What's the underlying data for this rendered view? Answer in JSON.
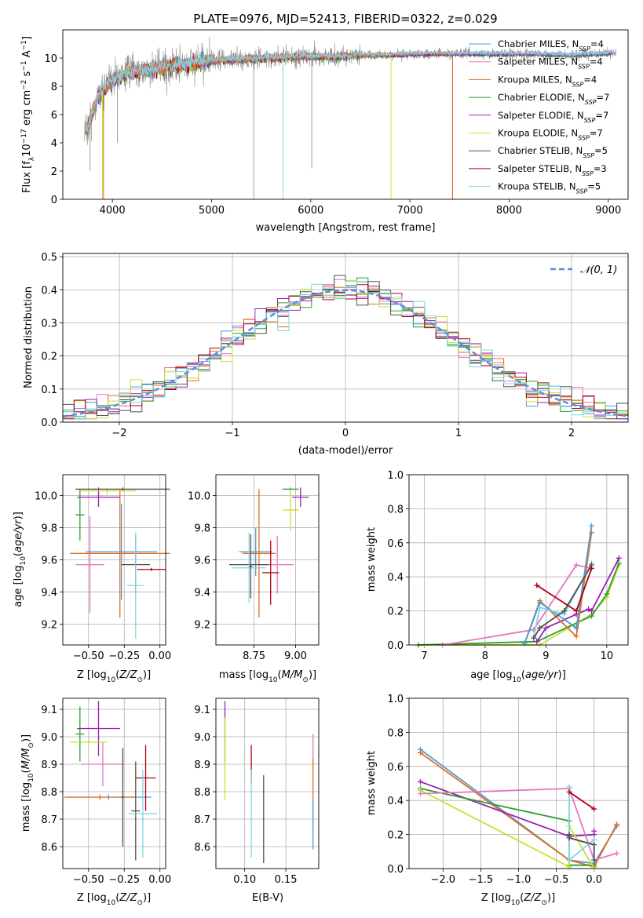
{
  "title": "PLATE=0976, MJD=52413, FIBERID=0322, z=0.029",
  "colors": {
    "cm": "#4f9bd6",
    "sm": "#e377c2",
    "km": "#e07020",
    "ce": "#2ca02c",
    "se": "#9b1fb0",
    "ke": "#c8e030",
    "cs": "#505050",
    "ss": "#b00010",
    "ks": "#7dd8e0",
    "grid": "#b0b0b0",
    "gray": "#888888",
    "dash": "#5a8fd8"
  },
  "chart_data": [
    {
      "id": "spectrum",
      "type": "line",
      "title": "PLATE=0976, MJD=52413, FIBERID=0322, z=0.029",
      "xlabel": "wavelength [Angstrom, rest frame]",
      "ylabel": "Flux [fλ10⁻¹⁷ erg cm⁻² s⁻¹ A⁻¹]",
      "xlim": [
        3500,
        9200
      ],
      "ylim": [
        0,
        12
      ],
      "xticks": [
        4000,
        5000,
        6000,
        7000,
        8000,
        9000
      ],
      "yticks": [
        0,
        2,
        4,
        6,
        8,
        10
      ],
      "data_anchor_x": [
        3750,
        3850,
        4000,
        4200,
        4500,
        4800,
        5000,
        5300,
        5600,
        5900,
        6200,
        6500,
        6800,
        7100,
        7400,
        7700,
        8000,
        8300,
        8600,
        8900,
        9100
      ],
      "data_anchor_y": [
        5.0,
        7.2,
        8.5,
        9.0,
        9.3,
        9.6,
        9.8,
        9.9,
        10.0,
        10.1,
        10.1,
        10.2,
        10.2,
        10.3,
        10.3,
        10.3,
        10.3,
        10.3,
        10.2,
        10.3,
        10.4
      ],
      "legend": [
        {
          "label": "Chabrier MILES, N",
          "sub": "SSP",
          "suffix": "=4",
          "color": "cm"
        },
        {
          "label": "Salpeter MILES, N",
          "sub": "SSP",
          "suffix": "=4",
          "color": "sm"
        },
        {
          "label": "Kroupa MILES, N",
          "sub": "SSP",
          "suffix": "=4",
          "color": "km"
        },
        {
          "label": "Chabrier ELODIE, N",
          "sub": "SSP",
          "suffix": "=7",
          "color": "ce"
        },
        {
          "label": "Salpeter ELODIE, N",
          "sub": "SSP",
          "suffix": "=7",
          "color": "se"
        },
        {
          "label": "Kroupa ELODIE, N",
          "sub": "SSP",
          "suffix": "=7",
          "color": "ke"
        },
        {
          "label": "Chabrier STELIB, N",
          "sub": "SSP",
          "suffix": "=5",
          "color": "cs"
        },
        {
          "label": "Salpeter STELIB, N",
          "sub": "SSP",
          "suffix": "=3",
          "color": "ss"
        },
        {
          "label": "Kroupa STELIB, N",
          "sub": "SSP",
          "suffix": "=5",
          "color": "ks"
        }
      ]
    },
    {
      "id": "residuals",
      "type": "line",
      "xlabel": "(data-model)/error",
      "ylabel": "Normed distribution",
      "xlim": [
        -2.5,
        2.5
      ],
      "ylim": [
        0,
        0.51
      ],
      "xticks": [
        -2,
        -1,
        0,
        1,
        2
      ],
      "xticklabels": [
        "−2",
        "−1",
        "0",
        "1",
        "2"
      ],
      "yticks": [
        0,
        0.1,
        0.2,
        0.3,
        0.4,
        0.5
      ],
      "yticklabels": [
        "0.0",
        "0.1",
        "0.2",
        "0.3",
        "0.4",
        "0.5"
      ],
      "bin_width": 0.1,
      "legend": [
        {
          "label": "N(0,1)",
          "color": "dash",
          "style": "dashed"
        }
      ]
    },
    {
      "id": "age_vs_Z",
      "type": "scatter",
      "xlabel": "Z [log10(Z/Z⊙)]",
      "ylabel": "age  [log10(age/yr)]",
      "xlim": [
        -0.68,
        0.04
      ],
      "ylim": [
        9.07,
        10.13
      ],
      "xticks": [
        -0.5,
        -0.25,
        0.0
      ],
      "xticklabels": [
        "−0.50",
        "−0.25",
        "0.00"
      ],
      "yticks": [
        9.2,
        9.4,
        9.6,
        9.8,
        10.0
      ],
      "yticklabels": [
        "9.2",
        "9.4",
        "9.6",
        "9.8",
        "10.0"
      ],
      "points": [
        {
          "c": "cm",
          "x": -0.27,
          "xe": 0.25,
          "y": 9.65,
          "ye": 0.3
        },
        {
          "c": "sm",
          "x": -0.49,
          "xe": 0.1,
          "y": 9.57,
          "ye": 0.3
        },
        {
          "c": "km",
          "x": -0.28,
          "xe": 0.35,
          "y": 9.64,
          "ye": 0.4
        },
        {
          "c": "ce",
          "x": -0.56,
          "xe": 0.03,
          "y": 9.88,
          "ye": 0.16
        },
        {
          "c": "se",
          "x": -0.43,
          "xe": 0.15,
          "y": 9.99,
          "ye": 0.06
        },
        {
          "c": "ke",
          "x": -0.37,
          "xe": 0.2,
          "y": 10.03,
          "ye": 0.02
        },
        {
          "c": "cs",
          "x": -0.17,
          "xe": 0.1,
          "y": 9.57,
          "ye": 0.18
        },
        {
          "c": "ss",
          "x": -0.06,
          "xe": 0.1,
          "y": 9.54,
          "ye": 0.01
        },
        {
          "c": "ks",
          "x": -0.17,
          "xe": 0.06,
          "y": 9.44,
          "ye": 0.33
        },
        {
          "c": "cs",
          "x": -0.26,
          "xe": 0.33,
          "y": 10.04,
          "ye": 0.01
        }
      ]
    },
    {
      "id": "age_vs_mass",
      "type": "scatter",
      "xlabel": "mass [log10(M/M⊙)]",
      "xlim": [
        8.52,
        9.14
      ],
      "ylim": [
        9.07,
        10.13
      ],
      "xticks": [
        8.75,
        9.0
      ],
      "xticklabels": [
        "8.75",
        "9.00"
      ],
      "yticks": [
        9.2,
        9.4,
        9.6,
        9.8,
        10.0
      ],
      "yticklabels": [
        "9.2",
        "9.4",
        "9.6",
        "9.8",
        "10.0"
      ],
      "points": [
        {
          "c": "cm",
          "x": 8.76,
          "xe": 0.1,
          "y": 9.65,
          "ye": 0.15
        },
        {
          "c": "sm",
          "x": 8.89,
          "xe": 0.1,
          "y": 9.57,
          "ye": 0.18
        },
        {
          "c": "km",
          "x": 8.78,
          "xe": 0.1,
          "y": 9.64,
          "ye": 0.4
        },
        {
          "c": "ce",
          "x": 8.97,
          "xe": 0.05,
          "y": 10.04,
          "ye": 0.01
        },
        {
          "c": "se",
          "x": 9.03,
          "xe": 0.05,
          "y": 9.99,
          "ye": 0.06
        },
        {
          "c": "ke",
          "x": 8.97,
          "xe": 0.05,
          "y": 9.91,
          "ye": 0.13
        },
        {
          "c": "cs",
          "x": 8.72,
          "xe": 0.12,
          "y": 9.57,
          "ye": 0.01
        },
        {
          "c": "ss",
          "x": 8.85,
          "xe": 0.05,
          "y": 9.52,
          "ye": 0.2
        },
        {
          "c": "ks",
          "x": 8.72,
          "xe": 0.1,
          "y": 9.55,
          "ye": 0.22
        },
        {
          "c": "cs",
          "x": 8.73,
          "xe": 0.01,
          "y": 9.56,
          "ye": 0.2
        }
      ]
    },
    {
      "id": "weight_vs_age",
      "type": "line",
      "xlabel": "age  [log10(age/yr)]",
      "ylabel": "mass weight",
      "xlim": [
        6.75,
        10.35
      ],
      "ylim": [
        0,
        1
      ],
      "xticks": [
        7,
        8,
        9,
        10
      ],
      "yticks": [
        0,
        0.2,
        0.4,
        0.6,
        0.8,
        1.0
      ],
      "yticklabels": [
        "0.0",
        "0.2",
        "0.4",
        "0.6",
        "0.8",
        "1.0"
      ],
      "series": [
        {
          "c": "ke",
          "pts": [
            [
              6.9,
              0.0
            ],
            [
              7.0,
              0.0
            ],
            [
              8.9,
              0.0
            ],
            [
              9.75,
              0.18
            ],
            [
              10.0,
              0.28
            ],
            [
              10.2,
              0.47
            ]
          ]
        },
        {
          "c": "ce",
          "pts": [
            [
              6.9,
              0.0
            ],
            [
              8.85,
              0.02
            ],
            [
              9.75,
              0.17
            ],
            [
              10.0,
              0.3
            ],
            [
              10.2,
              0.48
            ]
          ]
        },
        {
          "c": "se",
          "pts": [
            [
              8.85,
              0.02
            ],
            [
              9.0,
              0.1
            ],
            [
              9.5,
              0.18
            ],
            [
              9.7,
              0.21
            ],
            [
              9.75,
              0.2
            ],
            [
              10.2,
              0.51
            ]
          ]
        },
        {
          "c": "sm",
          "pts": [
            [
              7.3,
              0.0
            ],
            [
              8.8,
              0.09
            ],
            [
              9.5,
              0.47
            ],
            [
              9.75,
              0.45
            ]
          ]
        },
        {
          "c": "km",
          "pts": [
            [
              8.65,
              0.01
            ],
            [
              8.9,
              0.26
            ],
            [
              9.5,
              0.05
            ],
            [
              9.75,
              0.66
            ]
          ]
        },
        {
          "c": "cm",
          "pts": [
            [
              8.65,
              0.01
            ],
            [
              8.9,
              0.25
            ],
            [
              9.5,
              0.1
            ],
            [
              9.75,
              0.7
            ]
          ]
        },
        {
          "c": "ks",
          "pts": [
            [
              8.8,
              0.05
            ],
            [
              8.9,
              0.22
            ],
            [
              9.3,
              0.18
            ],
            [
              9.75,
              0.48
            ]
          ]
        },
        {
          "c": "cs",
          "pts": [
            [
              8.8,
              0.04
            ],
            [
              8.9,
              0.1
            ],
            [
              9.3,
              0.2
            ],
            [
              9.75,
              0.47
            ]
          ]
        },
        {
          "c": "ss",
          "pts": [
            [
              8.85,
              0.35
            ],
            [
              9.5,
              0.2
            ],
            [
              9.75,
              0.45
            ]
          ]
        }
      ]
    },
    {
      "id": "mass_vs_Z",
      "type": "scatter",
      "xlabel": "Z [log10(Z/Z⊙)]",
      "ylabel": "mass [log10(M/M⊙)]",
      "xlim": [
        -0.68,
        0.04
      ],
      "ylim": [
        8.52,
        9.14
      ],
      "xticks": [
        -0.5,
        -0.25,
        0.0
      ],
      "xticklabels": [
        "−0.50",
        "−0.25",
        "0.00"
      ],
      "yticks": [
        8.6,
        8.7,
        8.8,
        8.9,
        9.0,
        9.1
      ],
      "yticklabels": [
        "8.6",
        "8.7",
        "8.8",
        "8.9",
        "9.0",
        "9.1"
      ],
      "points": [
        {
          "c": "cm",
          "x": -0.36,
          "xe": 0.3,
          "y": 8.78,
          "ye": 0.01
        },
        {
          "c": "sm",
          "x": -0.4,
          "xe": 0.15,
          "y": 8.9,
          "ye": 0.08
        },
        {
          "c": "km",
          "x": -0.42,
          "xe": 0.25,
          "y": 8.78,
          "ye": 0.01
        },
        {
          "c": "ce",
          "x": -0.56,
          "xe": 0.03,
          "y": 9.01,
          "ye": 0.1
        },
        {
          "c": "se",
          "x": -0.43,
          "xe": 0.15,
          "y": 9.03,
          "ye": 0.1
        },
        {
          "c": "ke",
          "x": -0.5,
          "xe": 0.13,
          "y": 8.98,
          "ye": 0.01
        },
        {
          "c": "cs",
          "x": -0.17,
          "xe": 0.03,
          "y": 8.73,
          "ye": 0.18
        },
        {
          "c": "ss",
          "x": -0.1,
          "xe": 0.07,
          "y": 8.85,
          "ye": 0.12
        },
        {
          "c": "ks",
          "x": -0.12,
          "xe": 0.1,
          "y": 8.72,
          "ye": 0.16
        },
        {
          "c": "cs",
          "x": -0.26,
          "xe": 0.01,
          "y": 8.78,
          "ye": 0.18
        }
      ]
    },
    {
      "id": "mass_vs_ebv",
      "type": "scatter",
      "xlabel": "E(B-V)",
      "xlim": [
        0.065,
        0.19
      ],
      "ylim": [
        8.52,
        9.14
      ],
      "xticks": [
        0.1,
        0.15
      ],
      "xticklabels": [
        "0.10",
        "0.15"
      ],
      "yticks": [
        8.6,
        8.7,
        8.8,
        8.9,
        9.0,
        9.1
      ],
      "yticklabels": [
        "8.6",
        "8.7",
        "8.8",
        "8.9",
        "9.0",
        "9.1"
      ],
      "points": [
        {
          "c": "se",
          "x": 0.076,
          "xe": 0.0,
          "y": 9.02,
          "ye": 0.11
        },
        {
          "c": "ke",
          "x": 0.076,
          "xe": 0.0,
          "y": 8.92,
          "ye": 0.15
        },
        {
          "c": "ss",
          "x": 0.108,
          "xe": 0.0,
          "y": 8.9,
          "ye": 0.07
        },
        {
          "c": "ks",
          "x": 0.108,
          "xe": 0.0,
          "y": 8.72,
          "ye": 0.16
        },
        {
          "c": "cs",
          "x": 0.123,
          "xe": 0.0,
          "y": 8.7,
          "ye": 0.16
        },
        {
          "c": "sm",
          "x": 0.183,
          "xe": 0.0,
          "y": 8.95,
          "ye": 0.06
        },
        {
          "c": "km",
          "x": 0.183,
          "xe": 0.0,
          "y": 8.8,
          "ye": 0.12
        },
        {
          "c": "cm",
          "x": 0.183,
          "xe": 0.0,
          "y": 8.68,
          "ye": 0.09
        }
      ]
    },
    {
      "id": "weight_vs_Z",
      "type": "line",
      "xlabel": "Z [log10(Z/Z⊙)]",
      "ylabel": "mass weight",
      "xlim": [
        -2.45,
        0.45
      ],
      "ylim": [
        0,
        1
      ],
      "xticks": [
        -2.0,
        -1.5,
        -1.0,
        -0.5,
        0.0
      ],
      "xticklabels": [
        "−2.0",
        "−1.5",
        "−1.0",
        "−0.5",
        "0.0"
      ],
      "yticks": [
        0,
        0.2,
        0.4,
        0.6,
        0.8,
        1.0
      ],
      "yticklabels": [
        "0.0",
        "0.2",
        "0.4",
        "0.6",
        "0.8",
        "1.0"
      ],
      "series": [
        {
          "c": "cm",
          "pts": [
            [
              -2.3,
              0.7
            ],
            [
              -0.33,
              0.05
            ],
            [
              0.0,
              0.03
            ],
            [
              0.3,
              0.25
            ]
          ]
        },
        {
          "c": "km",
          "pts": [
            [
              -2.3,
              0.68
            ],
            [
              -0.33,
              0.05
            ],
            [
              0.0,
              0.01
            ],
            [
              0.3,
              0.26
            ]
          ]
        },
        {
          "c": "se",
          "pts": [
            [
              -2.3,
              0.51
            ],
            [
              -0.33,
              0.19
            ],
            [
              0.0,
              0.2
            ],
            [
              0.0,
              0.22
            ]
          ]
        },
        {
          "c": "ce",
          "pts": [
            [
              -2.3,
              0.47
            ],
            [
              -0.33,
              0.28
            ],
            [
              -0.33,
              0.02
            ],
            [
              0.0,
              0.02
            ]
          ]
        },
        {
          "c": "ke",
          "pts": [
            [
              -2.3,
              0.46
            ],
            [
              -0.33,
              0.01
            ],
            [
              -0.33,
              0.25
            ],
            [
              0.0,
              0.0
            ]
          ]
        },
        {
          "c": "sm",
          "pts": [
            [
              -2.3,
              0.44
            ],
            [
              -0.33,
              0.47
            ],
            [
              0.0,
              0.05
            ],
            [
              0.3,
              0.09
            ]
          ]
        },
        {
          "c": "ks",
          "pts": [
            [
              -0.33,
              0.48
            ],
            [
              -0.33,
              0.05
            ],
            [
              0.0,
              0.17
            ],
            [
              0.0,
              0.05
            ]
          ]
        },
        {
          "c": "cs",
          "pts": [
            [
              -0.33,
              0.2
            ],
            [
              -0.33,
              0.18
            ],
            [
              0.0,
              0.14
            ],
            [
              0.0,
              0.05
            ]
          ]
        },
        {
          "c": "ss",
          "pts": [
            [
              -0.33,
              0.45
            ],
            [
              0.0,
              0.35
            ]
          ]
        }
      ]
    }
  ]
}
